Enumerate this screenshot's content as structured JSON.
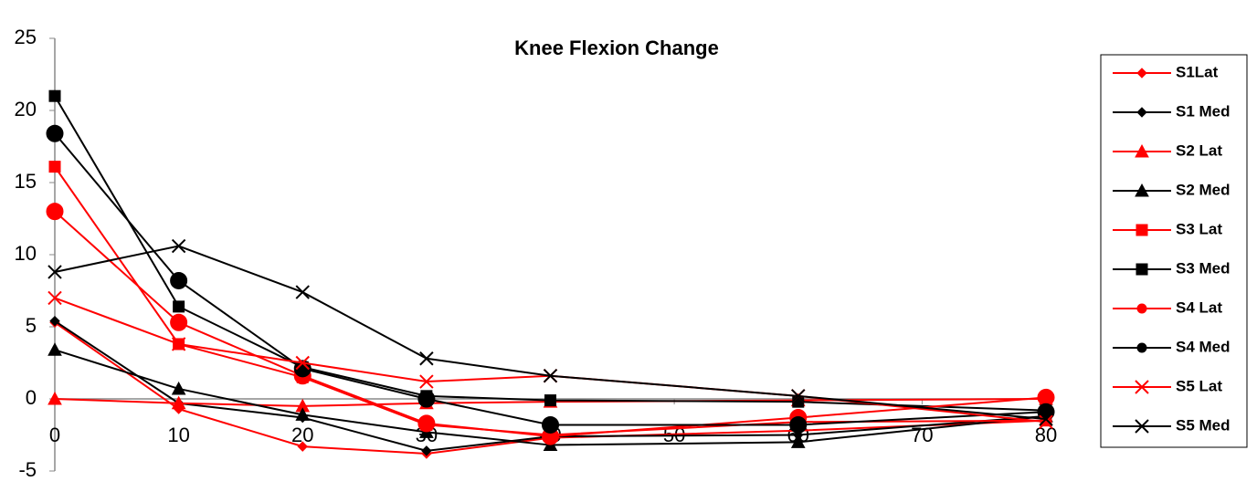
{
  "chart_data": {
    "type": "line",
    "title": "Knee Flexion Change",
    "x": [
      0,
      10,
      20,
      30,
      40,
      60,
      80
    ],
    "xlim": [
      0,
      80
    ],
    "xticks": [
      0,
      10,
      20,
      30,
      40,
      50,
      60,
      70,
      80
    ],
    "ylim": [
      -5,
      25
    ],
    "yticks": [
      -5,
      0,
      5,
      10,
      15,
      20,
      25
    ],
    "grid": false,
    "legend": "right",
    "series": [
      {
        "name": "S1Lat",
        "color": "#ff0000",
        "marker": "diamond",
        "values": [
          5.3,
          -0.7,
          -3.3,
          -3.8,
          -2.7,
          -2.2,
          -1.5
        ]
      },
      {
        "name": "S1 Med",
        "color": "#000000",
        "marker": "diamond",
        "values": [
          5.4,
          -0.3,
          -1.3,
          -3.6,
          -2.6,
          -2.5,
          -1.2
        ]
      },
      {
        "name": "S2 Lat",
        "color": "#ff0000",
        "marker": "triangle",
        "values": [
          0,
          -0.3,
          -0.5,
          -0.3,
          -0.2,
          -0.1,
          0
        ]
      },
      {
        "name": "S2 Med",
        "color": "#000000",
        "marker": "triangle",
        "values": [
          3.4,
          0.7,
          -1.1,
          -2.3,
          -3.2,
          -3.0,
          -1.2
        ]
      },
      {
        "name": "S3 Lat",
        "color": "#ff0000",
        "marker": "square",
        "values": [
          16.1,
          3.8,
          1.5,
          -1.8,
          -2.5,
          -1.6,
          -1.5
        ]
      },
      {
        "name": "S3 Med",
        "color": "#000000",
        "marker": "square",
        "values": [
          21,
          6.4,
          2.2,
          0.2,
          -0.1,
          -0.2,
          -0.8
        ]
      },
      {
        "name": "S4 Lat",
        "color": "#ff0000",
        "marker": "circle",
        "values": [
          13,
          5.3,
          1.6,
          -1.7,
          -2.6,
          -1.3,
          0.1
        ]
      },
      {
        "name": "S4 Med",
        "color": "#000000",
        "marker": "circle",
        "values": [
          18.4,
          8.2,
          2.1,
          0,
          -1.8,
          -1.8,
          -0.9
        ]
      },
      {
        "name": "S5 Lat",
        "color": "#ff0000",
        "marker": "x",
        "values": [
          7,
          3.8,
          2.5,
          1.2,
          1.6,
          0.2,
          -1.6
        ]
      },
      {
        "name": "S5 Med",
        "color": "#000000",
        "marker": "x",
        "values": [
          8.8,
          10.6,
          7.4,
          2.8,
          1.6,
          0.2,
          -1.4
        ]
      }
    ]
  }
}
